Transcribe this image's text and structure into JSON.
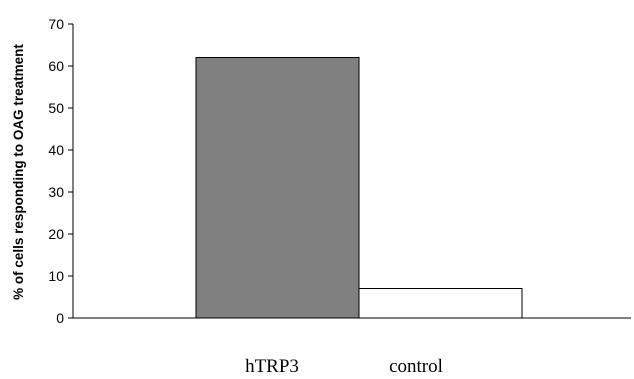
{
  "chart_data": {
    "type": "bar",
    "title": "",
    "xlabel": "",
    "ylabel": "% of cells responding to OAG treatment",
    "categories": [
      "hTRP3",
      "control"
    ],
    "values": [
      62,
      7
    ],
    "colors": [
      "#808080",
      "#ffffff"
    ],
    "ylim": [
      0,
      70
    ],
    "yticks": [
      0,
      10,
      20,
      30,
      40,
      50,
      60,
      70
    ],
    "grid": false,
    "legend": "none"
  }
}
